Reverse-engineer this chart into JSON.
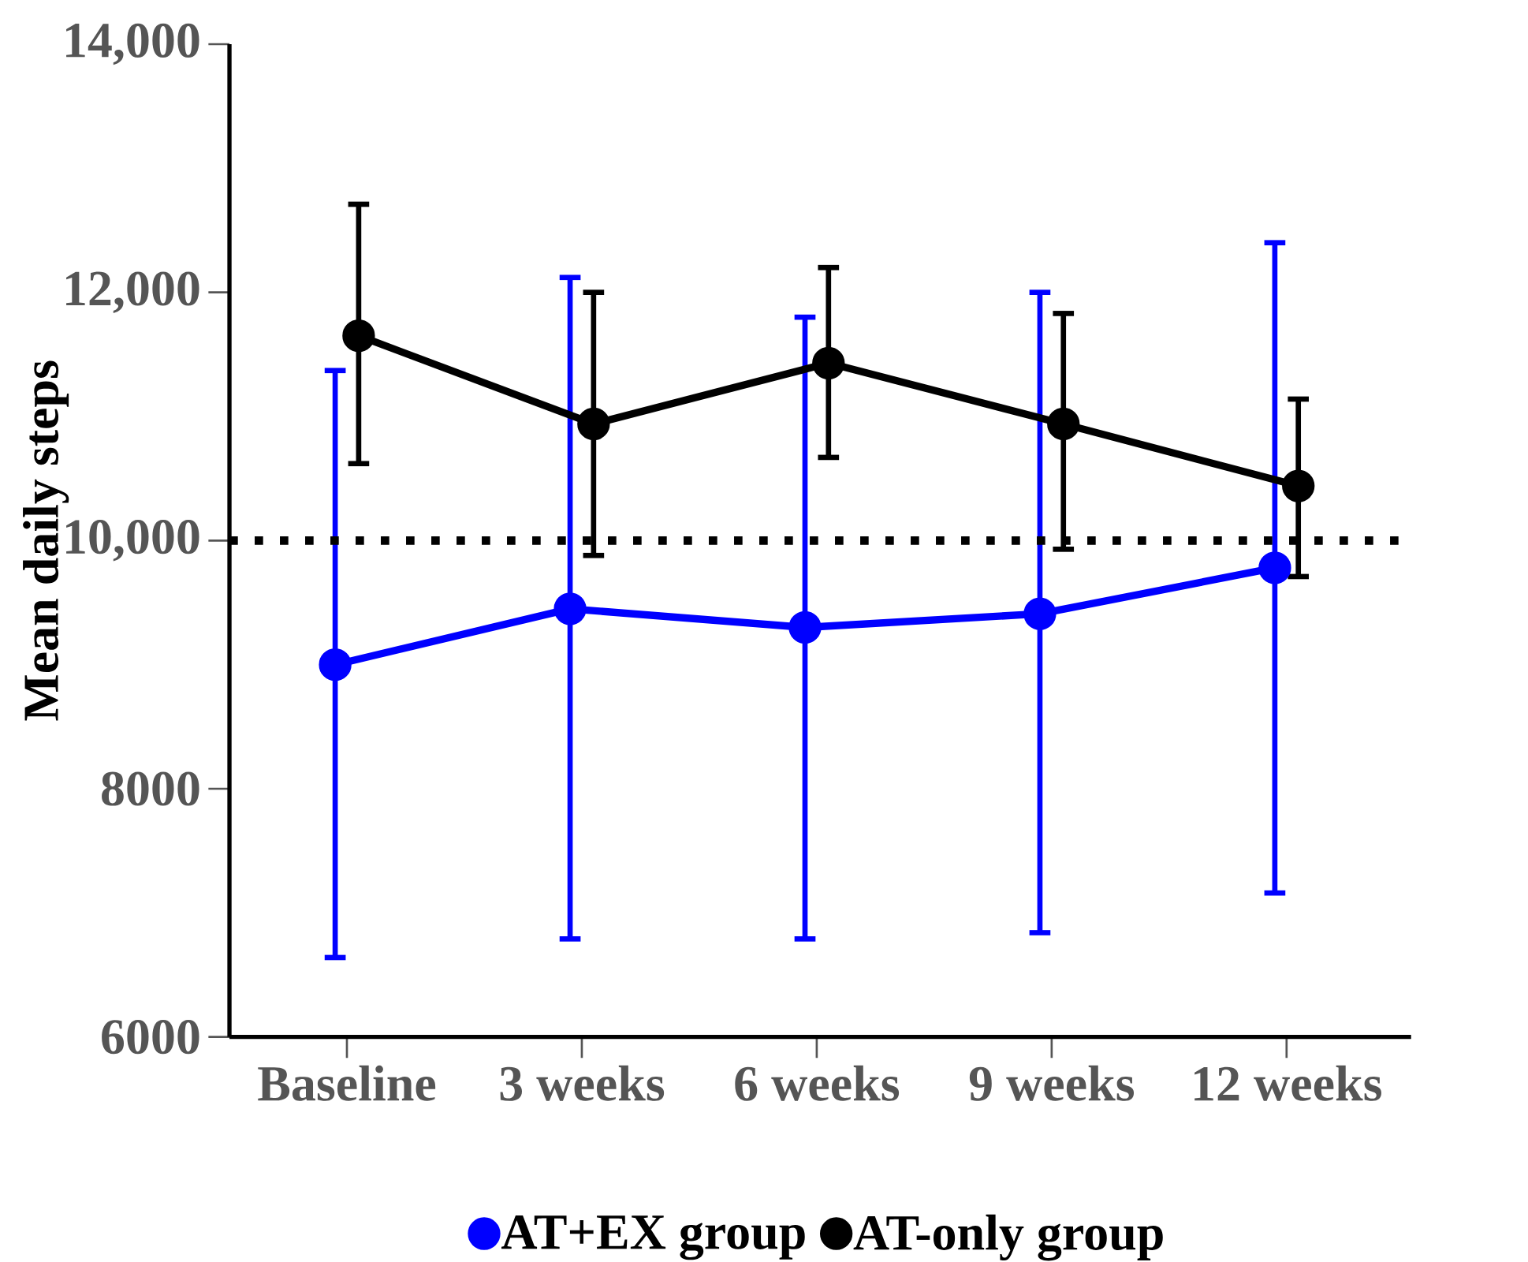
{
  "chart_data": {
    "type": "line",
    "ylabel": "Mean daily steps",
    "categories": [
      "Baseline",
      "3 weeks",
      "6 weeks",
      "9 weeks",
      "12 weeks"
    ],
    "series": [
      {
        "name": "AT+EX group",
        "color": "#0000ff",
        "values": [
          9000,
          9450,
          9300,
          9410,
          9780
        ],
        "errors": [
          [
            6640,
            11370
          ],
          [
            6790,
            12120
          ],
          [
            6790,
            11800
          ],
          [
            6840,
            12000
          ],
          [
            7160,
            12400
          ]
        ]
      },
      {
        "name": "AT-only group",
        "color": "#000000",
        "values": [
          11650,
          10940,
          11430,
          10940,
          10440
        ],
        "errors": [
          [
            10620,
            12710
          ],
          [
            9880,
            12000
          ],
          [
            10670,
            12200
          ],
          [
            9930,
            11830
          ],
          [
            9710,
            11140
          ]
        ]
      }
    ],
    "ylim": [
      6000,
      14000
    ],
    "yticks": [
      6000,
      8000,
      {
        "value": 10000,
        "label": "10,000"
      },
      {
        "value": 12000,
        "label": "12,000"
      },
      {
        "value": 14000,
        "label": "14,000"
      }
    ],
    "ref_lines": [
      {
        "axis": "y",
        "value": 10000,
        "color": "#000000",
        "line_style": "dotted"
      }
    ],
    "grid": false,
    "legend": "bottom",
    "marker": "circle",
    "line_style": "solid"
  }
}
